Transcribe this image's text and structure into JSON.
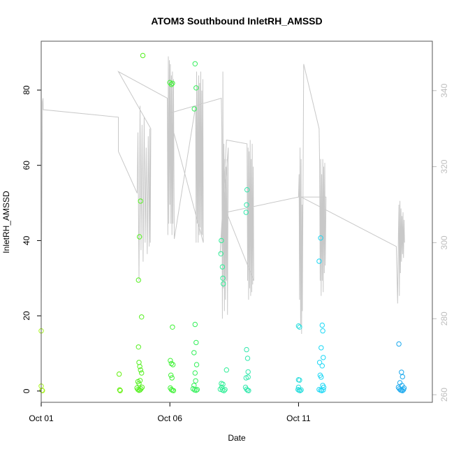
{
  "chart_data": {
    "type": "scatter",
    "title": "ATOM3 Southbound InletRH_AMSSD",
    "xlabel": "Date",
    "ylabel": "InletRH_AMSSD",
    "xlim": [
      0,
      15.2
    ],
    "ylim": [
      -3,
      93
    ],
    "y2lim": [
      258,
      353
    ],
    "x_ticks": [
      {
        "value": 0,
        "label": "Oct 01"
      },
      {
        "value": 5,
        "label": "Oct 06"
      },
      {
        "value": 10,
        "label": "Oct 11"
      }
    ],
    "y_ticks": [
      0,
      20,
      40,
      60,
      80
    ],
    "y2_ticks": [
      260,
      280,
      300,
      320,
      340
    ],
    "colors": {
      "box": "#555555",
      "secondary_line": "#c8c8c8",
      "secondary_axis": "#bdbdbd"
    },
    "secondary_series": {
      "name": "",
      "axis": "right",
      "style": "line",
      "x": [
        0,
        0.05,
        0.07,
        0.08,
        3.0,
        3.0,
        3.73,
        3.76,
        3.8,
        3.84,
        3.88,
        3.92,
        3.96,
        4.0,
        4.04,
        4.08,
        4.12,
        4.16,
        4.2,
        4.22,
        4.24,
        4.26,
        3.0,
        4.9,
        4.92,
        4.94,
        4.96,
        4.98,
        5.0,
        5.02,
        5.04,
        5.06,
        5.08,
        5.1,
        5.12,
        5.14,
        5.17,
        6.0,
        6.02,
        6.04,
        6.06,
        6.08,
        6.1,
        6.12,
        6.14,
        6.16,
        6.18,
        6.2,
        6.22,
        6.24,
        6.26,
        6.28,
        6.3,
        4.95,
        7.0,
        7.02,
        7.04,
        7.06,
        7.08,
        7.1,
        7.12,
        7.14,
        7.16,
        7.18,
        7.2,
        7.22,
        7.24,
        7.27,
        6.95,
        7.2,
        8.0,
        8.02,
        8.04,
        8.06,
        8.08,
        8.1,
        8.12,
        8.14,
        8.16,
        8.18,
        8.2,
        8.22,
        8.24,
        8.26,
        7.2,
        10.0,
        10.02,
        10.04,
        10.06,
        10.08,
        10.1,
        10.12,
        10.14,
        10.15,
        10.2,
        10.8,
        10.82,
        10.84,
        10.86,
        10.88,
        10.9,
        10.92,
        10.94,
        10.96,
        10.98,
        11.0,
        11.02,
        11.04,
        11.07,
        10.1,
        13.8,
        13.85,
        13.88,
        13.9,
        13.92,
        13.94,
        13.96,
        13.98,
        14.0,
        14.02,
        14.04,
        14.06,
        14.08,
        14.1,
        14.12
      ],
      "y": [
        284,
        337,
        338,
        335,
        333,
        324,
        313,
        329,
        290,
        336,
        298,
        331,
        295,
        333,
        300,
        325,
        297,
        328,
        299,
        330,
        300,
        330,
        345,
        338,
        302,
        349,
        305,
        348,
        310,
        347,
        305,
        344,
        302,
        345,
        305,
        343,
        301,
        336,
        300,
        345,
        305,
        341,
        300,
        344,
        302,
        342,
        304,
        345,
        302,
        340,
        302,
        343,
        300,
        334,
        338,
        330,
        280,
        345,
        288,
        326,
        282,
        322,
        285,
        320,
        290,
        322,
        281,
        325,
        297,
        327,
        326,
        290,
        325,
        285,
        324,
        288,
        327,
        286,
        322,
        287,
        326,
        289,
        320,
        290,
        308,
        312,
        318,
        285,
        325,
        278,
        322,
        276,
        310,
        282,
        347,
        330,
        321,
        290,
        322,
        286,
        318,
        290,
        322,
        287,
        320,
        292,
        321,
        294,
        312,
        312,
        299,
        284,
        302,
        310,
        286,
        311,
        292,
        309,
        295,
        307,
        297,
        308,
        296,
        306,
        300
      ]
    },
    "series": [
      {
        "name": "",
        "style": "points",
        "points": [
          {
            "x": 0.0,
            "y": 16.0,
            "color": "#a6f21e"
          },
          {
            "x": 0.0,
            "y": 1.3,
            "color": "#a6f21e"
          },
          {
            "x": 0.03,
            "y": 0.2,
            "color": "#a6f21e"
          },
          {
            "x": 0.05,
            "y": 0.1,
            "color": "#a6f21e"
          },
          {
            "x": 3.03,
            "y": 4.5,
            "color": "#64f10f"
          },
          {
            "x": 3.05,
            "y": 0.3,
            "color": "#64f10f"
          },
          {
            "x": 3.07,
            "y": 0.1,
            "color": "#64f10f"
          },
          {
            "x": 3.78,
            "y": 29.5,
            "color": "#55f020"
          },
          {
            "x": 3.82,
            "y": 41.0,
            "color": "#55f020"
          },
          {
            "x": 3.86,
            "y": 50.5,
            "color": "#55f020"
          },
          {
            "x": 3.9,
            "y": 19.7,
            "color": "#55f020"
          },
          {
            "x": 3.95,
            "y": 89.2,
            "color": "#55f020"
          },
          {
            "x": 3.78,
            "y": 11.7,
            "color": "#55f020"
          },
          {
            "x": 3.8,
            "y": 7.6,
            "color": "#55f020"
          },
          {
            "x": 3.83,
            "y": 6.5,
            "color": "#55f020"
          },
          {
            "x": 3.86,
            "y": 5.6,
            "color": "#55f020"
          },
          {
            "x": 3.9,
            "y": 4.8,
            "color": "#55f020"
          },
          {
            "x": 3.76,
            "y": 2.5,
            "color": "#55f020"
          },
          {
            "x": 3.8,
            "y": 2.0,
            "color": "#55f020"
          },
          {
            "x": 3.84,
            "y": 2.8,
            "color": "#55f020"
          },
          {
            "x": 3.72,
            "y": 0.8,
            "color": "#55f020"
          },
          {
            "x": 3.76,
            "y": 0.4,
            "color": "#55f020"
          },
          {
            "x": 3.8,
            "y": 0.2,
            "color": "#55f020"
          },
          {
            "x": 3.84,
            "y": 0.3,
            "color": "#55f020"
          },
          {
            "x": 3.88,
            "y": 0.6,
            "color": "#55f020"
          },
          {
            "x": 3.92,
            "y": 1.0,
            "color": "#55f020"
          },
          {
            "x": 5.0,
            "y": 82.0,
            "color": "#3ff236"
          },
          {
            "x": 5.06,
            "y": 81.5,
            "color": "#3ff236"
          },
          {
            "x": 5.1,
            "y": 81.8,
            "color": "#3ff236"
          },
          {
            "x": 5.1,
            "y": 17.0,
            "color": "#3ff236"
          },
          {
            "x": 5.02,
            "y": 8.1,
            "color": "#3ff236"
          },
          {
            "x": 5.06,
            "y": 7.3,
            "color": "#3ff236"
          },
          {
            "x": 5.12,
            "y": 7.0,
            "color": "#3ff236"
          },
          {
            "x": 5.04,
            "y": 4.2,
            "color": "#3ff236"
          },
          {
            "x": 5.08,
            "y": 3.5,
            "color": "#3ff236"
          },
          {
            "x": 5.02,
            "y": 0.8,
            "color": "#3ff236"
          },
          {
            "x": 5.06,
            "y": 0.4,
            "color": "#3ff236"
          },
          {
            "x": 5.1,
            "y": 0.2,
            "color": "#3ff236"
          },
          {
            "x": 5.14,
            "y": 0.1,
            "color": "#3ff236"
          },
          {
            "x": 5.98,
            "y": 87.0,
            "color": "#33f05a"
          },
          {
            "x": 6.02,
            "y": 80.6,
            "color": "#33f05a"
          },
          {
            "x": 5.95,
            "y": 75.0,
            "color": "#33f05a"
          },
          {
            "x": 5.98,
            "y": 17.7,
            "color": "#33f05a"
          },
          {
            "x": 6.02,
            "y": 12.9,
            "color": "#33f05a"
          },
          {
            "x": 5.94,
            "y": 10.2,
            "color": "#33f05a"
          },
          {
            "x": 6.04,
            "y": 7.0,
            "color": "#33f05a"
          },
          {
            "x": 5.98,
            "y": 4.8,
            "color": "#33f05a"
          },
          {
            "x": 6.0,
            "y": 2.7,
            "color": "#33f05a"
          },
          {
            "x": 5.94,
            "y": 1.5,
            "color": "#33f05a"
          },
          {
            "x": 5.9,
            "y": 0.6,
            "color": "#33f05a"
          },
          {
            "x": 5.96,
            "y": 0.3,
            "color": "#33f05a"
          },
          {
            "x": 6.02,
            "y": 0.2,
            "color": "#33f05a"
          },
          {
            "x": 6.06,
            "y": 0.4,
            "color": "#33f05a"
          },
          {
            "x": 7.0,
            "y": 40.0,
            "color": "#2eee96"
          },
          {
            "x": 6.98,
            "y": 36.5,
            "color": "#2eee96"
          },
          {
            "x": 7.04,
            "y": 33.0,
            "color": "#2eee96"
          },
          {
            "x": 7.06,
            "y": 30.0,
            "color": "#2eee96"
          },
          {
            "x": 7.08,
            "y": 28.5,
            "color": "#2eee96"
          },
          {
            "x": 7.2,
            "y": 5.6,
            "color": "#2eee96"
          },
          {
            "x": 7.0,
            "y": 2.0,
            "color": "#2eee96"
          },
          {
            "x": 7.06,
            "y": 1.8,
            "color": "#2eee96"
          },
          {
            "x": 7.02,
            "y": 1.0,
            "color": "#2eee96"
          },
          {
            "x": 6.96,
            "y": 0.5,
            "color": "#2eee96"
          },
          {
            "x": 7.04,
            "y": 0.3,
            "color": "#2eee96"
          },
          {
            "x": 7.1,
            "y": 0.1,
            "color": "#2eee96"
          },
          {
            "x": 7.14,
            "y": 0.4,
            "color": "#2eee96"
          },
          {
            "x": 8.0,
            "y": 53.5,
            "color": "#33e8ad"
          },
          {
            "x": 7.98,
            "y": 49.5,
            "color": "#33e8ad"
          },
          {
            "x": 7.96,
            "y": 47.5,
            "color": "#33e8ad"
          },
          {
            "x": 7.98,
            "y": 11.0,
            "color": "#33e8ad"
          },
          {
            "x": 8.02,
            "y": 8.7,
            "color": "#33e8ad"
          },
          {
            "x": 8.04,
            "y": 5.1,
            "color": "#33e8ad"
          },
          {
            "x": 7.96,
            "y": 3.5,
            "color": "#33e8ad"
          },
          {
            "x": 8.04,
            "y": 3.7,
            "color": "#33e8ad"
          },
          {
            "x": 7.94,
            "y": 1.0,
            "color": "#33e8ad"
          },
          {
            "x": 7.98,
            "y": 0.5,
            "color": "#33e8ad"
          },
          {
            "x": 8.02,
            "y": 0.2,
            "color": "#33e8ad"
          },
          {
            "x": 8.06,
            "y": 0.1,
            "color": "#33e8ad"
          },
          {
            "x": 10.0,
            "y": 17.3,
            "color": "#29dddd"
          },
          {
            "x": 10.04,
            "y": 17.0,
            "color": "#29dddd"
          },
          {
            "x": 10.0,
            "y": 3.0,
            "color": "#29dddd"
          },
          {
            "x": 10.04,
            "y": 2.9,
            "color": "#29dddd"
          },
          {
            "x": 10.0,
            "y": 1.0,
            "color": "#29dddd"
          },
          {
            "x": 9.98,
            "y": 0.4,
            "color": "#29dddd"
          },
          {
            "x": 10.02,
            "y": 0.2,
            "color": "#29dddd"
          },
          {
            "x": 10.06,
            "y": 0.1,
            "color": "#29dddd"
          },
          {
            "x": 10.1,
            "y": 0.3,
            "color": "#29dddd"
          },
          {
            "x": 10.86,
            "y": 40.7,
            "color": "#1ad7f5"
          },
          {
            "x": 10.8,
            "y": 34.5,
            "color": "#1ad7f5"
          },
          {
            "x": 10.92,
            "y": 17.5,
            "color": "#1ad7f5"
          },
          {
            "x": 10.94,
            "y": 16.0,
            "color": "#1ad7f5"
          },
          {
            "x": 10.88,
            "y": 11.5,
            "color": "#1ad7f5"
          },
          {
            "x": 10.96,
            "y": 8.9,
            "color": "#1ad7f5"
          },
          {
            "x": 10.82,
            "y": 7.6,
            "color": "#1ad7f5"
          },
          {
            "x": 10.92,
            "y": 6.7,
            "color": "#1ad7f5"
          },
          {
            "x": 10.84,
            "y": 4.2,
            "color": "#1ad7f5"
          },
          {
            "x": 10.88,
            "y": 3.7,
            "color": "#1ad7f5"
          },
          {
            "x": 10.94,
            "y": 1.5,
            "color": "#1ad7f5"
          },
          {
            "x": 10.98,
            "y": 1.0,
            "color": "#1ad7f5"
          },
          {
            "x": 10.8,
            "y": 0.4,
            "color": "#1ad7f5"
          },
          {
            "x": 10.86,
            "y": 0.2,
            "color": "#1ad7f5"
          },
          {
            "x": 10.9,
            "y": 0.1,
            "color": "#1ad7f5"
          },
          {
            "x": 10.96,
            "y": 0.3,
            "color": "#1ad7f5"
          },
          {
            "x": 13.9,
            "y": 12.5,
            "color": "#1aa9ee"
          },
          {
            "x": 14.0,
            "y": 5.0,
            "color": "#1aa9ee"
          },
          {
            "x": 14.04,
            "y": 3.8,
            "color": "#1aa9ee"
          },
          {
            "x": 13.94,
            "y": 2.2,
            "color": "#1aa9ee"
          },
          {
            "x": 14.02,
            "y": 1.5,
            "color": "#1aa9ee"
          },
          {
            "x": 13.88,
            "y": 1.0,
            "color": "#1aa9ee"
          },
          {
            "x": 13.92,
            "y": 0.6,
            "color": "#1aa9ee"
          },
          {
            "x": 13.96,
            "y": 0.3,
            "color": "#1aa9ee"
          },
          {
            "x": 14.0,
            "y": 0.2,
            "color": "#1aa9ee"
          },
          {
            "x": 14.04,
            "y": 0.1,
            "color": "#1aa9ee"
          },
          {
            "x": 14.08,
            "y": 0.4,
            "color": "#1aa9ee"
          },
          {
            "x": 14.1,
            "y": 0.8,
            "color": "#1aa9ee"
          }
        ]
      }
    ]
  }
}
